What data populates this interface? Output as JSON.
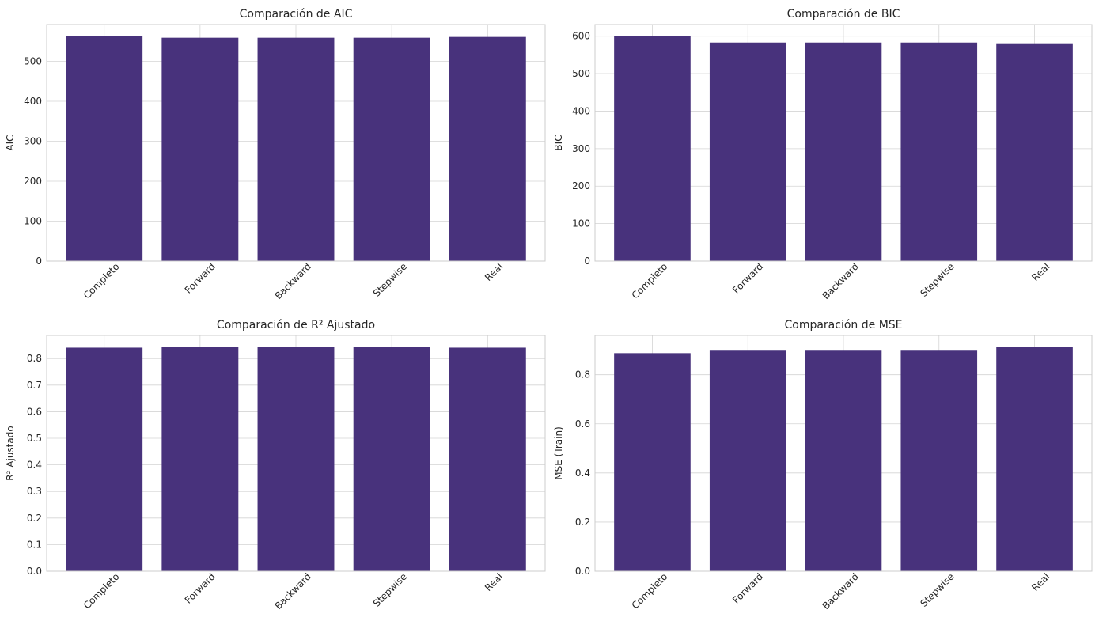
{
  "chart_data": [
    {
      "type": "bar",
      "title": "Comparación de AIC",
      "xlabel": "",
      "ylabel": "AIC",
      "categories": [
        "Completo",
        "Forward",
        "Backward",
        "Stepwise",
        "Real"
      ],
      "values": [
        564,
        559,
        559,
        559,
        561
      ],
      "ylim": [
        0,
        592
      ],
      "yticks": [
        0,
        100,
        200,
        300,
        400,
        500
      ],
      "ytick_labels": [
        "0",
        "100",
        "200",
        "300",
        "400",
        "500"
      ],
      "grid": true
    },
    {
      "type": "bar",
      "title": "Comparación de BIC",
      "xlabel": "",
      "ylabel": "BIC",
      "categories": [
        "Completo",
        "Forward",
        "Backward",
        "Stepwise",
        "Real"
      ],
      "values": [
        601,
        583,
        583,
        583,
        581
      ],
      "ylim": [
        0,
        631
      ],
      "yticks": [
        0,
        100,
        200,
        300,
        400,
        500,
        600
      ],
      "ytick_labels": [
        "0",
        "100",
        "200",
        "300",
        "400",
        "500",
        "600"
      ],
      "grid": true
    },
    {
      "type": "bar",
      "title": "Comparación de R² Ajustado",
      "xlabel": "",
      "ylabel": "R² Ajustado",
      "categories": [
        "Completo",
        "Forward",
        "Backward",
        "Stepwise",
        "Real"
      ],
      "values": [
        0.841,
        0.845,
        0.845,
        0.845,
        0.841
      ],
      "ylim": [
        0,
        0.887
      ],
      "yticks": [
        0,
        0.1,
        0.2,
        0.3,
        0.4,
        0.5,
        0.6,
        0.7,
        0.8
      ],
      "ytick_labels": [
        "0.0",
        "0.1",
        "0.2",
        "0.3",
        "0.4",
        "0.5",
        "0.6",
        "0.7",
        "0.8"
      ],
      "grid": true
    },
    {
      "type": "bar",
      "title": "Comparación de MSE",
      "xlabel": "",
      "ylabel": "MSE (Train)",
      "categories": [
        "Completo",
        "Forward",
        "Backward",
        "Stepwise",
        "Real"
      ],
      "values": [
        0.888,
        0.898,
        0.898,
        0.898,
        0.914
      ],
      "ylim": [
        0,
        0.96
      ],
      "yticks": [
        0,
        0.2,
        0.4,
        0.6,
        0.8
      ],
      "ytick_labels": [
        "0.0",
        "0.2",
        "0.4",
        "0.6",
        "0.8"
      ],
      "grid": true
    }
  ],
  "colors": {
    "bar": "#48327c",
    "grid": "#d4d4d4",
    "spine": "#cccccc",
    "text": "#262626",
    "background": "#ffffff"
  }
}
